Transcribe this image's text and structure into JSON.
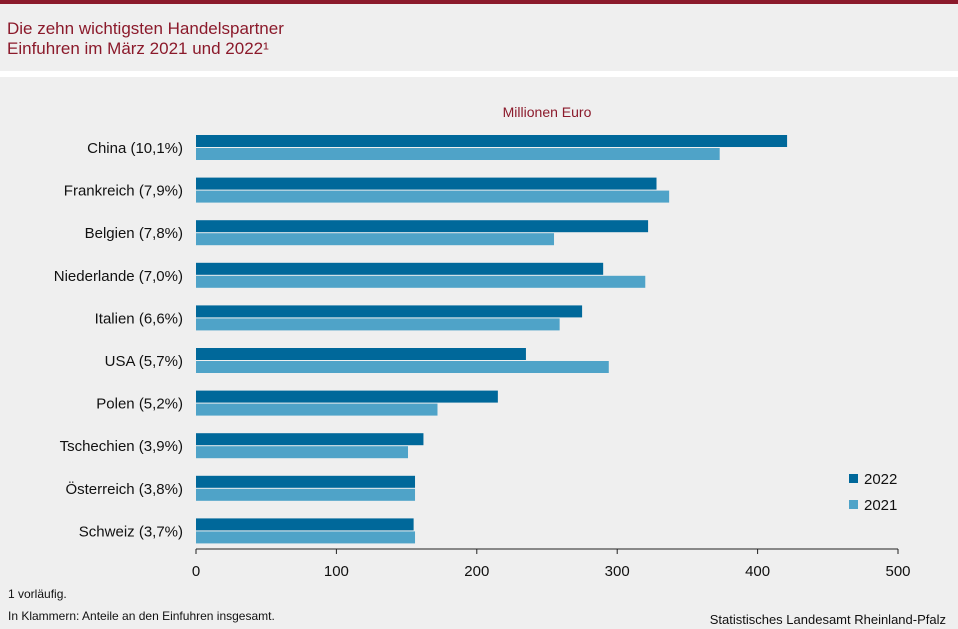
{
  "header": {
    "title_line1": "Die zehn wichtigsten Handelspartner",
    "title_line2": "Einfuhren im März 2021 und 2022¹"
  },
  "colors": {
    "brand": "#8b1a2b",
    "series_2022": "#00689a",
    "series_2021": "#4fa3c8"
  },
  "chart_data": {
    "type": "bar",
    "orientation": "horizontal",
    "unit_label": "Millionen Euro",
    "categories": [
      "China (10,1%)",
      "Frankreich (7,9%)",
      "Belgien (7,8%)",
      "Niederlande (7,0%)",
      "Italien (6,6%)",
      "USA (5,7%)",
      "Polen (5,2%)",
      "Tschechien (3,9%)",
      "Österreich (3,8%)",
      "Schweiz (3,7%)"
    ],
    "series": [
      {
        "name": "2022",
        "values": [
          421,
          328,
          322,
          290,
          275,
          235,
          215,
          162,
          156,
          155
        ]
      },
      {
        "name": "2021",
        "values": [
          373,
          337,
          255,
          320,
          259,
          294,
          172,
          151,
          156,
          156
        ]
      }
    ],
    "xlim": [
      0,
      500
    ],
    "xticks": [
      0,
      100,
      200,
      300,
      400,
      500
    ],
    "xtick_labels": [
      "0",
      "100",
      "200",
      "300",
      "400",
      "500"
    ],
    "legend_position": "bottom-right",
    "grid": false
  },
  "footer": {
    "footnote1": "1 vorläufig.",
    "footnote2": "In Klammern: Anteile an den Einfuhren insgesamt.",
    "source": "Statistisches Landesamt Rheinland-Pfalz"
  }
}
